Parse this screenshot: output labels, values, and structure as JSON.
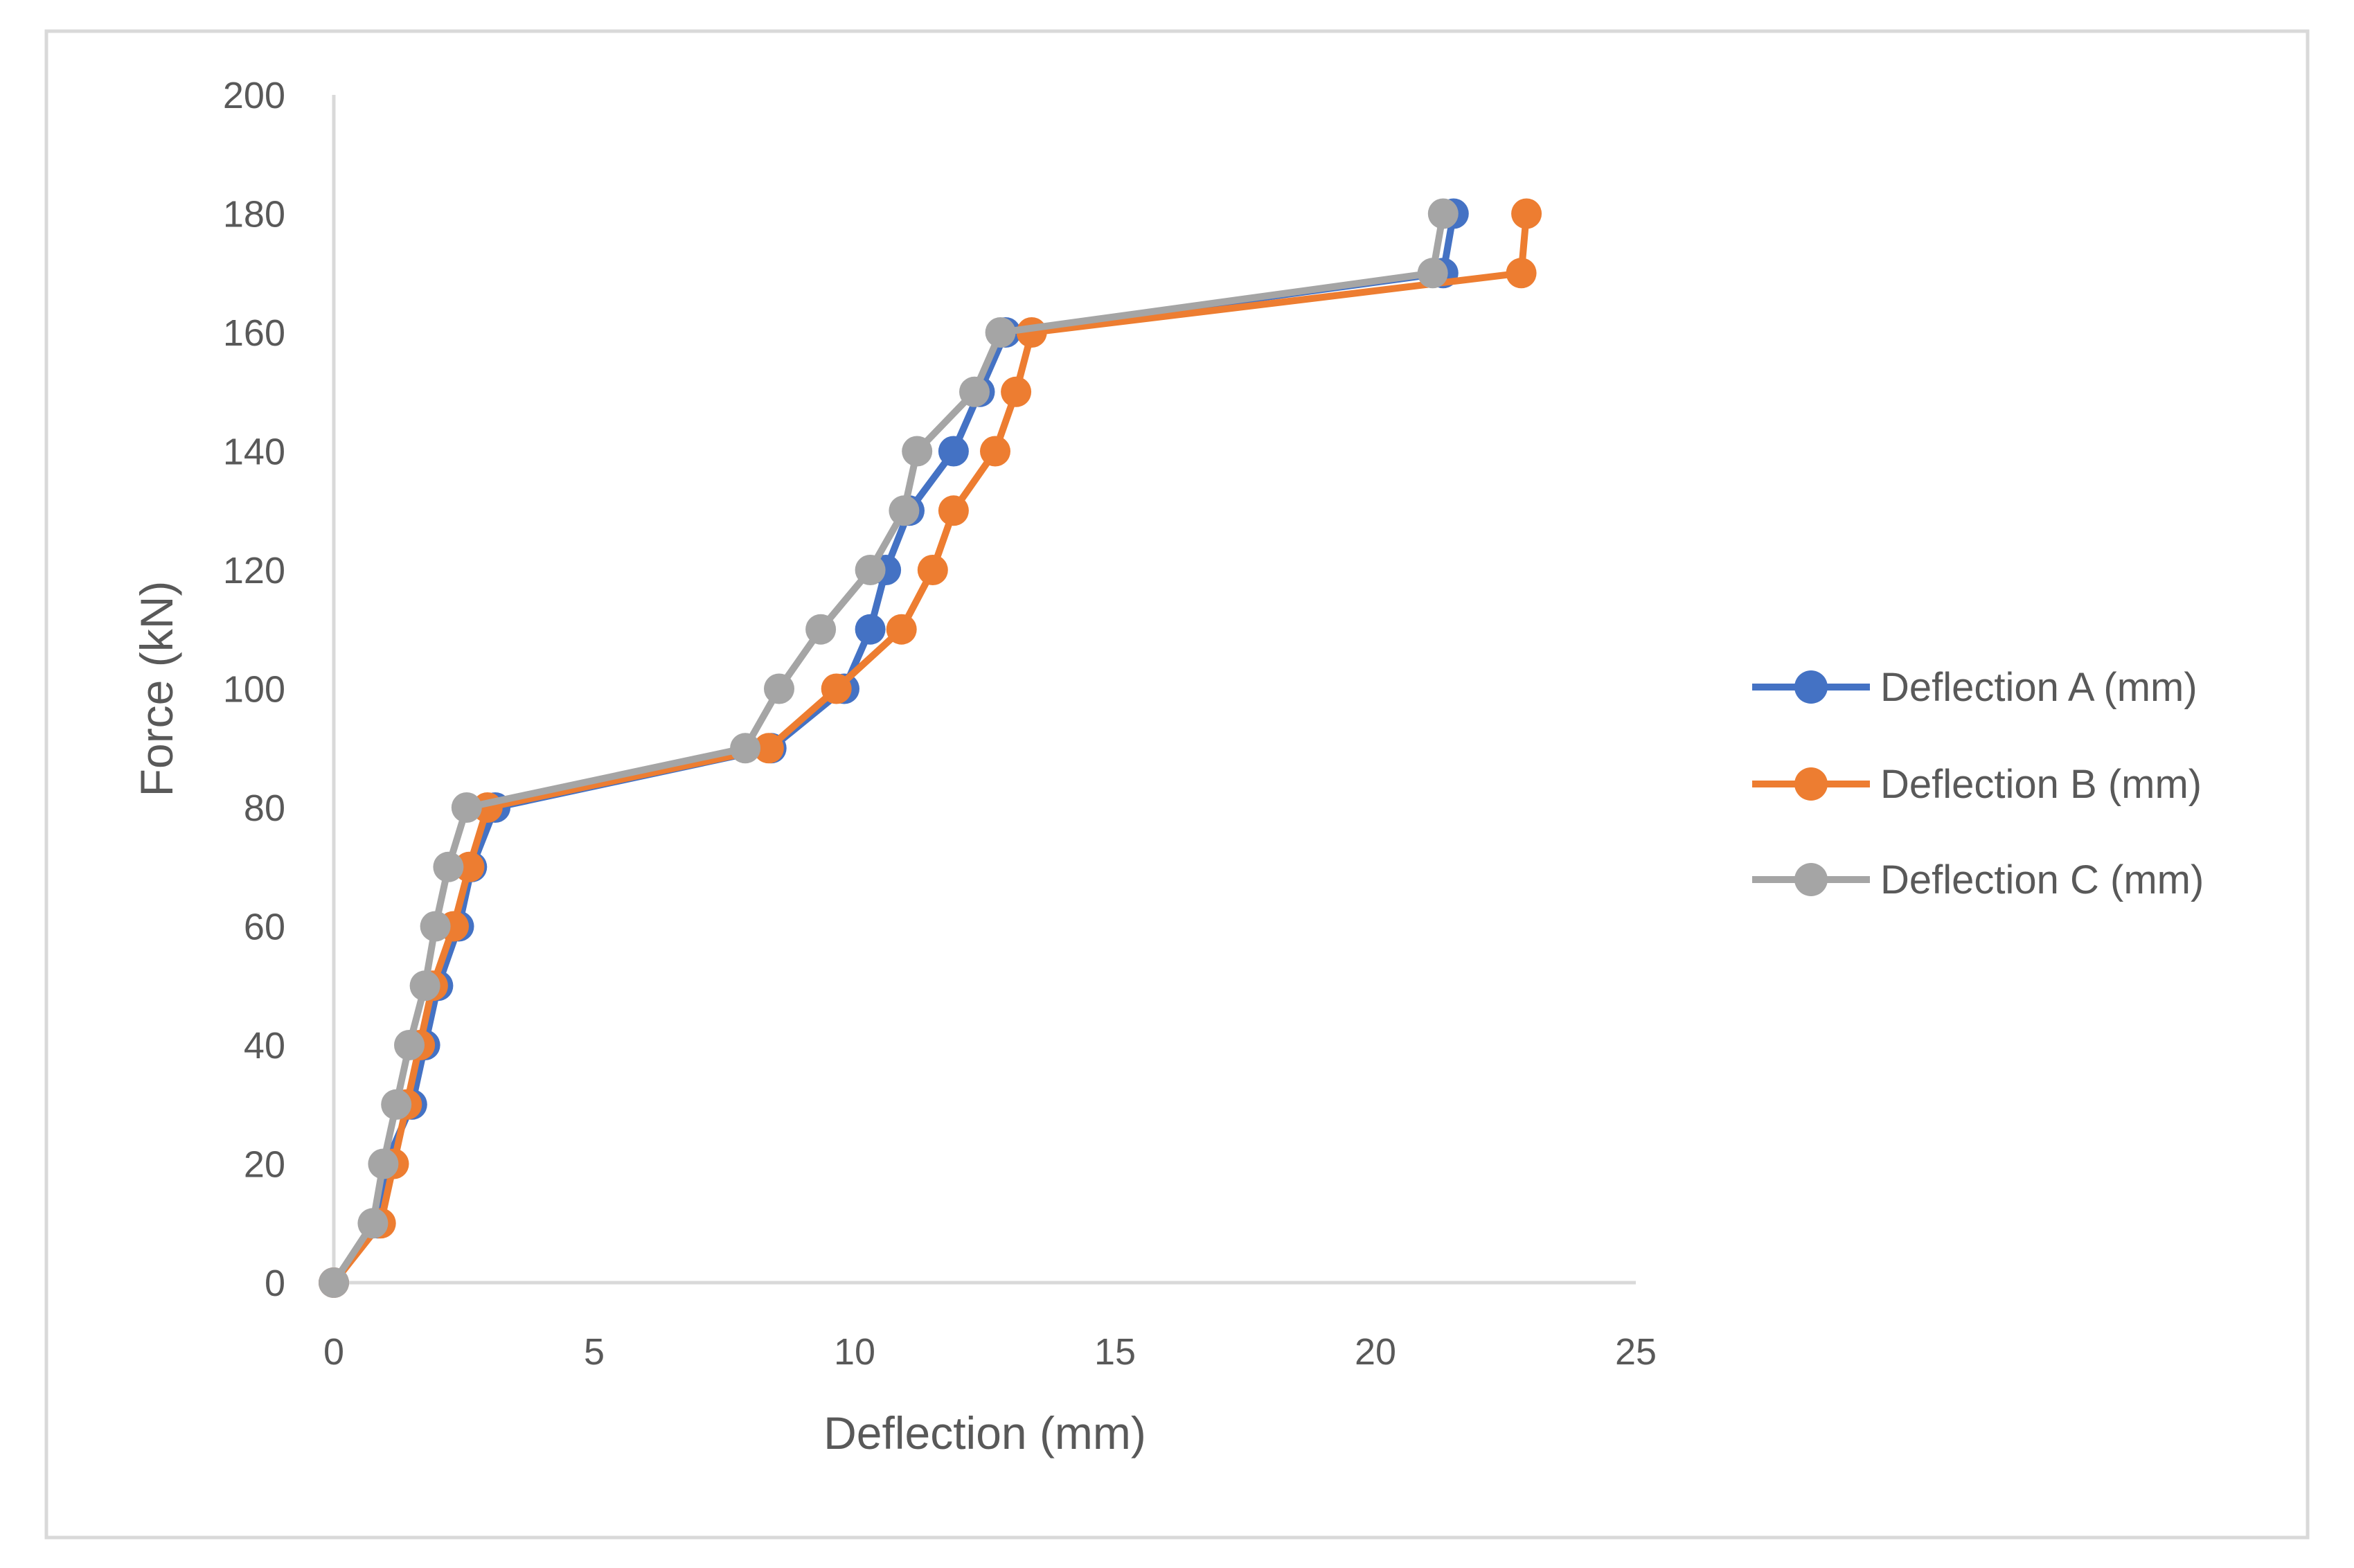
{
  "chart_data": {
    "type": "scatter",
    "title": "",
    "xlabel": "Deflection (mm)",
    "ylabel": "Force (kN)",
    "xlim": [
      0,
      25
    ],
    "ylim": [
      0,
      200
    ],
    "xticks": [
      0,
      5,
      10,
      15,
      20,
      25
    ],
    "yticks": [
      0,
      20,
      40,
      60,
      80,
      100,
      120,
      140,
      160,
      180,
      200
    ],
    "xtick_labels": [
      "0",
      "5",
      "10",
      "15",
      "20",
      "25"
    ],
    "ytick_labels": [
      "0",
      "20",
      "40",
      "60",
      "80",
      "100",
      "120",
      "140",
      "160",
      "180",
      "200"
    ],
    "grid": false,
    "legend_position": "right",
    "force": [
      0,
      10,
      20,
      30,
      40,
      50,
      60,
      70,
      80,
      90,
      100,
      110,
      120,
      130,
      140,
      150,
      160,
      170,
      180
    ],
    "series": [
      {
        "name": "Deflection A (mm)",
        "color": "#4472C4",
        "x": [
          0,
          0.85,
          1.0,
          1.5,
          1.75,
          2.0,
          2.4,
          2.65,
          3.1,
          8.4,
          9.8,
          10.3,
          10.6,
          11.05,
          11.9,
          12.4,
          12.9,
          21.3,
          21.5
        ],
        "y": [
          0,
          10,
          20,
          30,
          40,
          50,
          60,
          70,
          80,
          90,
          100,
          110,
          120,
          130,
          140,
          150,
          160,
          170,
          180
        ]
      },
      {
        "name": "Deflection B (mm)",
        "color": "#ED7D31",
        "x": [
          0,
          0.9,
          1.15,
          1.4,
          1.65,
          1.9,
          2.3,
          2.6,
          2.95,
          8.35,
          9.65,
          10.9,
          11.5,
          11.9,
          12.7,
          13.1,
          13.4,
          22.8,
          22.9
        ],
        "y": [
          0,
          10,
          20,
          30,
          40,
          50,
          60,
          70,
          80,
          90,
          100,
          110,
          120,
          130,
          140,
          150,
          160,
          170,
          180
        ]
      },
      {
        "name": "Deflection C (mm)",
        "color": "#A5A5A5",
        "x": [
          0,
          0.75,
          0.95,
          1.2,
          1.45,
          1.75,
          1.95,
          2.2,
          2.55,
          7.9,
          8.55,
          9.35,
          10.3,
          10.95,
          11.2,
          12.3,
          12.8,
          21.1,
          21.3
        ],
        "y": [
          0,
          10,
          20,
          30,
          40,
          50,
          60,
          70,
          80,
          90,
          100,
          110,
          120,
          130,
          140,
          150,
          160,
          170,
          180
        ]
      }
    ]
  }
}
